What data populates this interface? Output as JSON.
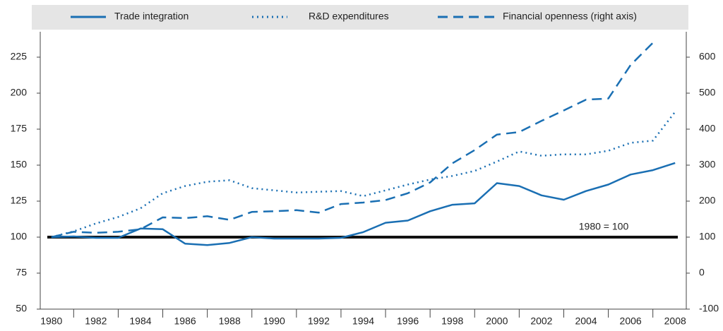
{
  "chart_data": {
    "type": "line",
    "categories": [
      "1980",
      null,
      "1982",
      null,
      "1984",
      null,
      "1986",
      null,
      "1988",
      null,
      "1990",
      null,
      "1992",
      null,
      "1994",
      null,
      "1996",
      null,
      "1998",
      null,
      "2000",
      null,
      "2002",
      null,
      "2004",
      null,
      "2006",
      null,
      "2008"
    ],
    "series": [
      {
        "name": "Trade integration",
        "color": "#1a6fb3",
        "style": "solid",
        "axis": "y",
        "values": [
          100,
          100.5,
          99.5,
          99.5,
          106,
          105.5,
          95.5,
          94.5,
          96,
          100,
          99,
          99,
          99,
          99.5,
          103.5,
          110,
          111.5,
          118,
          122.5,
          123.5,
          137.5,
          135.5,
          129,
          126,
          132,
          136.5,
          143.5,
          146.5,
          151.5
        ]
      },
      {
        "name": "R&D expenditures",
        "color": "#1a6fb3",
        "style": "dotted",
        "axis": "y",
        "values": [
          100,
          104,
          109.5,
          114,
          120,
          130.5,
          135.5,
          138.5,
          139.5,
          134,
          132.5,
          131,
          131.5,
          132,
          128.5,
          132.5,
          136.5,
          140,
          142.5,
          146,
          152.5,
          159.5,
          156.5,
          157.5,
          157.5,
          160,
          165.5,
          167,
          187
        ]
      },
      {
        "name": "Financial openness (right axis)",
        "color": "#1a6fb3",
        "style": "dashed",
        "axis": "y2",
        "values": [
          100,
          115,
          112,
          115,
          122,
          155,
          153,
          158,
          148,
          170,
          172,
          175,
          168,
          192,
          196,
          203,
          222,
          252,
          305,
          342,
          385,
          392,
          423,
          452,
          482,
          485,
          578,
          640,
          null
        ]
      }
    ],
    "ylim": [
      50,
      225
    ],
    "yticks": [
      50,
      75,
      100,
      125,
      150,
      175,
      200,
      225
    ],
    "y2lim": [
      -100,
      600
    ],
    "y2ticks": [
      -100,
      0,
      100,
      200,
      300,
      400,
      500,
      600
    ],
    "reference_line": {
      "value": 100,
      "label": "1980 = 100",
      "color": "#111111"
    }
  }
}
